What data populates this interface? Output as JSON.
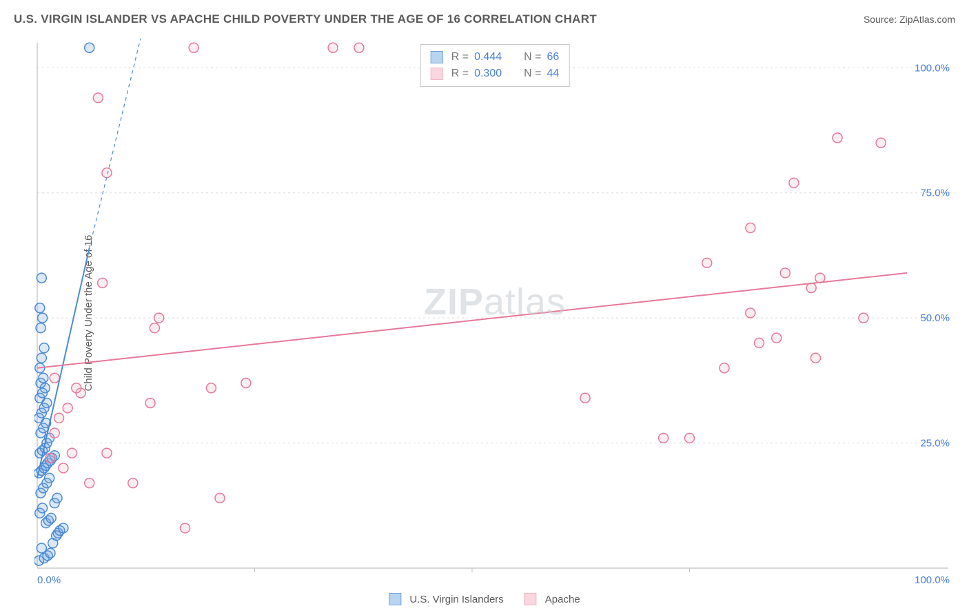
{
  "title": "U.S. VIRGIN ISLANDER VS APACHE CHILD POVERTY UNDER THE AGE OF 16 CORRELATION CHART",
  "source_label": "Source: ZipAtlas.com",
  "watermark_main": "ZIP",
  "watermark_sub": "atlas",
  "chart": {
    "type": "scatter",
    "background_color": "#ffffff",
    "grid_color": "#d9d9d9",
    "axis_line_color": "#bfbfbf",
    "tick_label_color": "#4b7fd6",
    "xlim": [
      0,
      100
    ],
    "ylim": [
      0,
      105
    ],
    "x_ticks": [
      0,
      25,
      50,
      75,
      100
    ],
    "y_ticks": [
      25,
      50,
      75,
      100
    ],
    "x_tick_labels": {
      "0": "0.0%",
      "100": "100.0%"
    },
    "y_tick_labels": {
      "25": "25.0%",
      "50": "50.0%",
      "75": "75.0%",
      "100": "100.0%"
    },
    "y_axis_label": "Child Poverty Under the Age of 16",
    "marker_radius": 7,
    "marker_stroke_width": 1.5,
    "marker_fill_opacity": 0.25,
    "trend_line_width": 2,
    "series": [
      {
        "name": "U.S. Virgin Islanders",
        "color": "#6ea5e0",
        "stroke": "#4b8ad4",
        "R": "0.444",
        "N": "66",
        "trend": {
          "x1": 0,
          "y1": 18,
          "x2": 6,
          "y2": 64,
          "extend_dashed_to_x": 15,
          "extend_dashed_to_y": 128
        },
        "points": [
          [
            0.2,
            1.5
          ],
          [
            0.8,
            2
          ],
          [
            1.2,
            2.5
          ],
          [
            1.5,
            3
          ],
          [
            0.5,
            4
          ],
          [
            1.8,
            5
          ],
          [
            2.2,
            6.5
          ],
          [
            2.4,
            7
          ],
          [
            2.6,
            7.5
          ],
          [
            3.0,
            8
          ],
          [
            1.0,
            9
          ],
          [
            1.3,
            9.5
          ],
          [
            1.6,
            10
          ],
          [
            0.3,
            11
          ],
          [
            0.6,
            12
          ],
          [
            2.0,
            13
          ],
          [
            2.3,
            14
          ],
          [
            0.4,
            15
          ],
          [
            0.7,
            16
          ],
          [
            1.1,
            17
          ],
          [
            1.4,
            18
          ],
          [
            0.2,
            19
          ],
          [
            0.5,
            19.5
          ],
          [
            0.8,
            20
          ],
          [
            1.0,
            20.5
          ],
          [
            1.2,
            21
          ],
          [
            1.5,
            21.5
          ],
          [
            1.7,
            22
          ],
          [
            2.0,
            22.5
          ],
          [
            0.3,
            23
          ],
          [
            0.6,
            23.5
          ],
          [
            0.9,
            24
          ],
          [
            1.1,
            25
          ],
          [
            1.4,
            26
          ],
          [
            0.4,
            27
          ],
          [
            0.7,
            28
          ],
          [
            1.0,
            29
          ],
          [
            0.2,
            30
          ],
          [
            0.5,
            31
          ],
          [
            0.8,
            32
          ],
          [
            1.1,
            33
          ],
          [
            0.3,
            34
          ],
          [
            0.6,
            35
          ],
          [
            0.9,
            36
          ],
          [
            0.4,
            37
          ],
          [
            0.7,
            38
          ],
          [
            0.3,
            40
          ],
          [
            0.5,
            42
          ],
          [
            0.8,
            44
          ],
          [
            0.4,
            48
          ],
          [
            0.6,
            50
          ],
          [
            0.3,
            52
          ],
          [
            0.5,
            58
          ],
          [
            6.0,
            104
          ]
        ]
      },
      {
        "name": "Apache",
        "color": "#f2b6c4",
        "stroke": "#e77899",
        "R": "0.300",
        "N": "44",
        "trend": {
          "x1": 0,
          "y1": 40,
          "x2": 100,
          "y2": 59
        },
        "points": [
          [
            1.5,
            22
          ],
          [
            2,
            27
          ],
          [
            3,
            20
          ],
          [
            4,
            23
          ],
          [
            2.5,
            30
          ],
          [
            3.5,
            32
          ],
          [
            5,
            35
          ],
          [
            4.5,
            36
          ],
          [
            2,
            38
          ],
          [
            6,
            17
          ],
          [
            8,
            23
          ],
          [
            11,
            17
          ],
          [
            13,
            33
          ],
          [
            13.5,
            48
          ],
          [
            14,
            50
          ],
          [
            7.5,
            57
          ],
          [
            7,
            94
          ],
          [
            8,
            79
          ],
          [
            18,
            104
          ],
          [
            20,
            36
          ],
          [
            21,
            14
          ],
          [
            17,
            8
          ],
          [
            24,
            37
          ],
          [
            34,
            104
          ],
          [
            37,
            104
          ],
          [
            63,
            34
          ],
          [
            72,
            26
          ],
          [
            75,
            26
          ],
          [
            77,
            61
          ],
          [
            79,
            40
          ],
          [
            82,
            51
          ],
          [
            83,
            45
          ],
          [
            85,
            46
          ],
          [
            86,
            59
          ],
          [
            87,
            77
          ],
          [
            89,
            56
          ],
          [
            89.5,
            42
          ],
          [
            90,
            58
          ],
          [
            92,
            86
          ],
          [
            95,
            50
          ],
          [
            97,
            85
          ],
          [
            82,
            68
          ]
        ]
      }
    ]
  },
  "legend": {
    "items": [
      {
        "label": "U.S. Virgin Islanders",
        "fill": "#b9d4f0",
        "stroke": "#6ea5e0"
      },
      {
        "label": "Apache",
        "fill": "#f9d7e0",
        "stroke": "#f2b6c4"
      }
    ]
  }
}
